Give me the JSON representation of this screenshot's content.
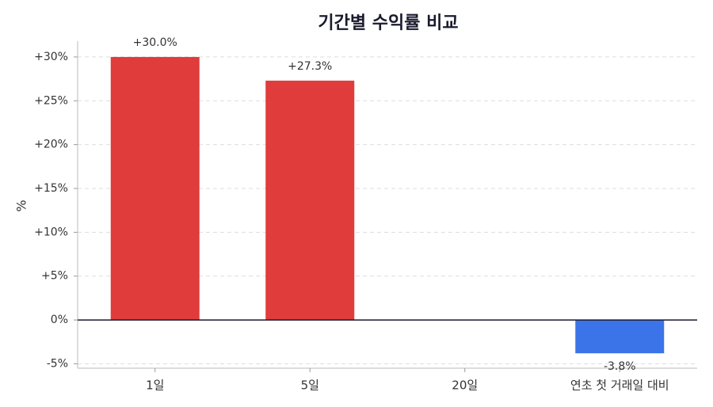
{
  "chart_data": {
    "type": "bar",
    "title": "기간별 수익률 비교",
    "y_label": "%",
    "categories": [
      "1일",
      "5일",
      "20일",
      "연초 첫 거래일 대비"
    ],
    "values": [
      30.0,
      27.3,
      null,
      -3.8
    ],
    "value_labels": [
      "+30.0%",
      "+27.3%",
      null,
      "-3.8%"
    ],
    "colors": [
      "#e03c3c",
      "#e03c3c",
      null,
      "#3b73e8"
    ],
    "ylim": [
      -5.5,
      31.8
    ],
    "yticks": [
      {
        "value": -5,
        "label": "-5%"
      },
      {
        "value": 0,
        "label": "0%"
      },
      {
        "value": 5,
        "label": "+5%"
      },
      {
        "value": 10,
        "label": "+10%"
      },
      {
        "value": 15,
        "label": "+15%"
      },
      {
        "value": 20,
        "label": "+20%"
      },
      {
        "value": 25,
        "label": "+25%"
      },
      {
        "value": 30,
        "label": "+30%"
      }
    ],
    "grid": true
  }
}
